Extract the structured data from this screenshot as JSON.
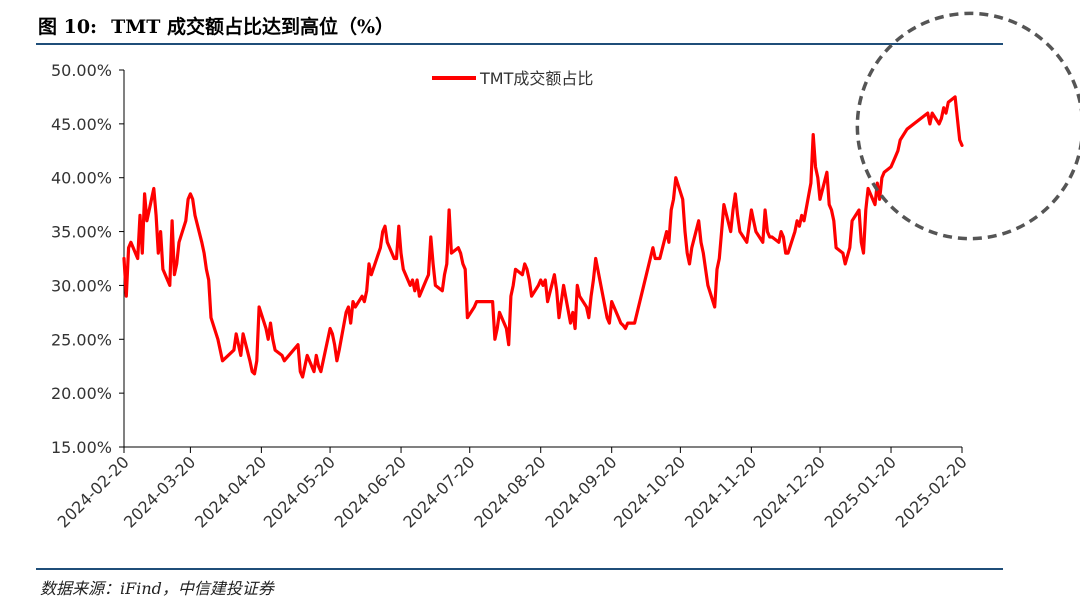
{
  "figure": {
    "number": "图 10:",
    "title": "TMT 成交额占比达到高位（%）",
    "source": "数据来源：iFind，中信建投证券"
  },
  "colors": {
    "series": "#ff0000",
    "axis": "#000000",
    "rule": "#1f4e79",
    "highlight_circle": "#555555"
  },
  "chart_data": {
    "type": "line",
    "title": "",
    "xlabel": "",
    "ylabel": "",
    "ylim": [
      15,
      50
    ],
    "y_ticks": [
      "15.00%",
      "20.00%",
      "25.00%",
      "30.00%",
      "35.00%",
      "40.00%",
      "45.00%",
      "50.00%"
    ],
    "y_tick_values": [
      15,
      20,
      25,
      30,
      35,
      40,
      45,
      50
    ],
    "x_ticks": [
      "2024-02-20",
      "2024-03-20",
      "2024-04-20",
      "2024-05-20",
      "2024-06-20",
      "2024-07-20",
      "2024-08-20",
      "2024-09-20",
      "2024-10-20",
      "2024-11-20",
      "2024-12-20",
      "2025-01-20",
      "2025-02-20"
    ],
    "xlim": [
      "2024-02-20",
      "2025-02-20"
    ],
    "grid": false,
    "legend": "top-center",
    "highlight": {
      "shape": "dashed-circle",
      "center": [
        "2025-02-20",
        44.8
      ],
      "radius_days": 24
    },
    "series": [
      {
        "name": "TMT成交额占比",
        "points": [
          [
            "2024-02-20",
            32.5
          ],
          [
            "2024-02-21",
            29.0
          ],
          [
            "2024-02-22",
            33.5
          ],
          [
            "2024-02-23",
            34.0
          ],
          [
            "2024-02-26",
            32.5
          ],
          [
            "2024-02-27",
            36.5
          ],
          [
            "2024-02-28",
            33.0
          ],
          [
            "2024-02-29",
            38.5
          ],
          [
            "2024-03-01",
            36.0
          ],
          [
            "2024-03-04",
            39.0
          ],
          [
            "2024-03-05",
            36.5
          ],
          [
            "2024-03-06",
            33.0
          ],
          [
            "2024-03-07",
            35.0
          ],
          [
            "2024-03-08",
            31.5
          ],
          [
            "2024-03-11",
            30.0
          ],
          [
            "2024-03-12",
            36.0
          ],
          [
            "2024-03-13",
            31.0
          ],
          [
            "2024-03-14",
            32.0
          ],
          [
            "2024-03-15",
            34.0
          ],
          [
            "2024-03-18",
            36.0
          ],
          [
            "2024-03-19",
            38.0
          ],
          [
            "2024-03-20",
            38.5
          ],
          [
            "2024-03-21",
            38.0
          ],
          [
            "2024-03-22",
            36.5
          ],
          [
            "2024-03-25",
            34.0
          ],
          [
            "2024-03-26",
            33.0
          ],
          [
            "2024-03-27",
            31.5
          ],
          [
            "2024-03-28",
            30.5
          ],
          [
            "2024-03-29",
            27.0
          ],
          [
            "2024-04-01",
            25.0
          ],
          [
            "2024-04-02",
            24.0
          ],
          [
            "2024-04-03",
            23.0
          ],
          [
            "2024-04-08",
            24.0
          ],
          [
            "2024-04-09",
            25.5
          ],
          [
            "2024-04-10",
            24.5
          ],
          [
            "2024-04-11",
            23.5
          ],
          [
            "2024-04-12",
            25.5
          ],
          [
            "2024-04-15",
            23.0
          ],
          [
            "2024-04-16",
            22.0
          ],
          [
            "2024-04-17",
            21.8
          ],
          [
            "2024-04-18",
            23.0
          ],
          [
            "2024-04-19",
            28.0
          ],
          [
            "2024-04-22",
            26.0
          ],
          [
            "2024-04-23",
            25.0
          ],
          [
            "2024-04-24",
            26.5
          ],
          [
            "2024-04-25",
            25.0
          ],
          [
            "2024-04-26",
            24.0
          ],
          [
            "2024-04-29",
            23.5
          ],
          [
            "2024-04-30",
            23.0
          ],
          [
            "2024-05-06",
            24.5
          ],
          [
            "2024-05-07",
            22.0
          ],
          [
            "2024-05-08",
            21.5
          ],
          [
            "2024-05-09",
            22.5
          ],
          [
            "2024-05-10",
            23.5
          ],
          [
            "2024-05-13",
            22.0
          ],
          [
            "2024-05-14",
            23.5
          ],
          [
            "2024-05-15",
            22.5
          ],
          [
            "2024-05-16",
            22.0
          ],
          [
            "2024-05-17",
            23.0
          ],
          [
            "2024-05-20",
            26.0
          ],
          [
            "2024-05-21",
            25.5
          ],
          [
            "2024-05-22",
            24.5
          ],
          [
            "2024-05-23",
            23.0
          ],
          [
            "2024-05-24",
            24.0
          ],
          [
            "2024-05-27",
            27.5
          ],
          [
            "2024-05-28",
            28.0
          ],
          [
            "2024-05-29",
            26.5
          ],
          [
            "2024-05-30",
            28.5
          ],
          [
            "2024-05-31",
            28.0
          ],
          [
            "2024-06-03",
            29.0
          ],
          [
            "2024-06-04",
            28.5
          ],
          [
            "2024-06-05",
            29.5
          ],
          [
            "2024-06-06",
            32.0
          ],
          [
            "2024-06-07",
            31.0
          ],
          [
            "2024-06-11",
            33.5
          ],
          [
            "2024-06-12",
            35.0
          ],
          [
            "2024-06-13",
            35.5
          ],
          [
            "2024-06-14",
            34.0
          ],
          [
            "2024-06-17",
            32.5
          ],
          [
            "2024-06-18",
            32.5
          ],
          [
            "2024-06-19",
            35.5
          ],
          [
            "2024-06-20",
            33.0
          ],
          [
            "2024-06-21",
            31.5
          ],
          [
            "2024-06-24",
            30.0
          ],
          [
            "2024-06-25",
            30.5
          ],
          [
            "2024-06-26",
            29.5
          ],
          [
            "2024-06-27",
            30.5
          ],
          [
            "2024-06-28",
            29.0
          ],
          [
            "2024-07-01",
            30.5
          ],
          [
            "2024-07-02",
            31.0
          ],
          [
            "2024-07-03",
            34.5
          ],
          [
            "2024-07-04",
            32.0
          ],
          [
            "2024-07-05",
            30.0
          ],
          [
            "2024-07-08",
            29.5
          ],
          [
            "2024-07-09",
            31.0
          ],
          [
            "2024-07-10",
            32.0
          ],
          [
            "2024-07-11",
            37.0
          ],
          [
            "2024-07-12",
            33.0
          ],
          [
            "2024-07-15",
            33.5
          ],
          [
            "2024-07-16",
            33.0
          ],
          [
            "2024-07-17",
            32.0
          ],
          [
            "2024-07-18",
            31.5
          ],
          [
            "2024-07-19",
            27.0
          ],
          [
            "2024-07-22",
            28.0
          ],
          [
            "2024-07-23",
            28.5
          ],
          [
            "2024-07-24",
            28.5
          ],
          [
            "2024-07-25",
            28.5
          ],
          [
            "2024-07-26",
            28.5
          ],
          [
            "2024-07-29",
            28.5
          ],
          [
            "2024-07-30",
            28.5
          ],
          [
            "2024-07-31",
            25.0
          ],
          [
            "2024-08-01",
            26.0
          ],
          [
            "2024-08-02",
            27.5
          ],
          [
            "2024-08-05",
            26.0
          ],
          [
            "2024-08-06",
            24.5
          ],
          [
            "2024-08-07",
            29.0
          ],
          [
            "2024-08-08",
            30.0
          ],
          [
            "2024-08-09",
            31.5
          ],
          [
            "2024-08-12",
            31.0
          ],
          [
            "2024-08-13",
            32.0
          ],
          [
            "2024-08-14",
            31.5
          ],
          [
            "2024-08-15",
            30.5
          ],
          [
            "2024-08-16",
            29.0
          ],
          [
            "2024-08-19",
            30.0
          ],
          [
            "2024-08-20",
            30.5
          ],
          [
            "2024-08-21",
            30.0
          ],
          [
            "2024-08-22",
            30.5
          ],
          [
            "2024-08-23",
            28.5
          ],
          [
            "2024-08-26",
            31.0
          ],
          [
            "2024-08-27",
            29.5
          ],
          [
            "2024-08-28",
            27.0
          ],
          [
            "2024-08-29",
            28.5
          ],
          [
            "2024-08-30",
            30.0
          ],
          [
            "2024-09-02",
            26.5
          ],
          [
            "2024-09-03",
            27.5
          ],
          [
            "2024-09-04",
            26.0
          ],
          [
            "2024-09-05",
            30.0
          ],
          [
            "2024-09-06",
            29.0
          ],
          [
            "2024-09-09",
            28.0
          ],
          [
            "2024-09-10",
            27.0
          ],
          [
            "2024-09-11",
            29.0
          ],
          [
            "2024-09-12",
            30.5
          ],
          [
            "2024-09-13",
            32.5
          ],
          [
            "2024-09-18",
            27.0
          ],
          [
            "2024-09-19",
            26.5
          ],
          [
            "2024-09-20",
            28.5
          ],
          [
            "2024-09-23",
            27.0
          ],
          [
            "2024-09-24",
            26.5
          ],
          [
            "2024-09-25",
            26.3
          ],
          [
            "2024-09-26",
            26.0
          ],
          [
            "2024-09-27",
            26.5
          ],
          [
            "2024-09-30",
            26.5
          ],
          [
            "2024-10-08",
            33.5
          ],
          [
            "2024-10-09",
            32.5
          ],
          [
            "2024-10-10",
            32.5
          ],
          [
            "2024-10-11",
            32.5
          ],
          [
            "2024-10-14",
            35.0
          ],
          [
            "2024-10-15",
            34.0
          ],
          [
            "2024-10-16",
            37.0
          ],
          [
            "2024-10-17",
            38.0
          ],
          [
            "2024-10-18",
            40.0
          ],
          [
            "2024-10-21",
            38.0
          ],
          [
            "2024-10-22",
            35.0
          ],
          [
            "2024-10-23",
            33.0
          ],
          [
            "2024-10-24",
            32.0
          ],
          [
            "2024-10-25",
            33.5
          ],
          [
            "2024-10-28",
            36.0
          ],
          [
            "2024-10-29",
            34.0
          ],
          [
            "2024-10-30",
            33.0
          ],
          [
            "2024-10-31",
            31.5
          ],
          [
            "2024-11-01",
            30.0
          ],
          [
            "2024-11-04",
            28.0
          ],
          [
            "2024-11-05",
            31.5
          ],
          [
            "2024-11-06",
            32.5
          ],
          [
            "2024-11-07",
            35.0
          ],
          [
            "2024-11-08",
            37.5
          ],
          [
            "2024-11-11",
            35.0
          ],
          [
            "2024-11-12",
            37.0
          ],
          [
            "2024-11-13",
            38.5
          ],
          [
            "2024-11-14",
            36.5
          ],
          [
            "2024-11-15",
            35.0
          ],
          [
            "2024-11-18",
            34.0
          ],
          [
            "2024-11-19",
            35.5
          ],
          [
            "2024-11-20",
            37.0
          ],
          [
            "2024-11-21",
            36.0
          ],
          [
            "2024-11-22",
            35.0
          ],
          [
            "2024-11-25",
            34.0
          ],
          [
            "2024-11-26",
            37.0
          ],
          [
            "2024-11-27",
            35.0
          ],
          [
            "2024-11-28",
            34.5
          ],
          [
            "2024-11-29",
            34.5
          ],
          [
            "2024-12-02",
            34.0
          ],
          [
            "2024-12-03",
            35.0
          ],
          [
            "2024-12-04",
            34.5
          ],
          [
            "2024-12-05",
            33.0
          ],
          [
            "2024-12-06",
            33.0
          ],
          [
            "2024-12-09",
            35.0
          ],
          [
            "2024-12-10",
            36.0
          ],
          [
            "2024-12-11",
            35.5
          ],
          [
            "2024-12-12",
            36.5
          ],
          [
            "2024-12-13",
            36.0
          ],
          [
            "2024-12-16",
            39.5
          ],
          [
            "2024-12-17",
            44.0
          ],
          [
            "2024-12-18",
            41.0
          ],
          [
            "2024-12-19",
            40.0
          ],
          [
            "2024-12-20",
            38.0
          ],
          [
            "2024-12-23",
            40.5
          ],
          [
            "2024-12-24",
            37.5
          ],
          [
            "2024-12-25",
            37.0
          ],
          [
            "2024-12-26",
            36.0
          ],
          [
            "2024-12-27",
            33.5
          ],
          [
            "2024-12-30",
            33.0
          ],
          [
            "2024-12-31",
            32.0
          ],
          [
            "2025-01-02",
            33.5
          ],
          [
            "2025-01-03",
            36.0
          ],
          [
            "2025-01-06",
            37.0
          ],
          [
            "2025-01-07",
            34.0
          ],
          [
            "2025-01-08",
            33.0
          ],
          [
            "2025-01-09",
            37.0
          ],
          [
            "2025-01-10",
            39.0
          ],
          [
            "2025-01-13",
            37.5
          ],
          [
            "2025-01-14",
            39.5
          ],
          [
            "2025-01-15",
            38.0
          ],
          [
            "2025-01-16",
            40.0
          ],
          [
            "2025-01-17",
            40.5
          ],
          [
            "2025-01-20",
            41.0
          ],
          [
            "2025-01-21",
            41.5
          ],
          [
            "2025-01-22",
            42.0
          ],
          [
            "2025-01-23",
            42.5
          ],
          [
            "2025-01-24",
            43.5
          ],
          [
            "2025-01-27",
            44.5
          ],
          [
            "2025-02-05",
            46.0
          ],
          [
            "2025-02-06",
            45.0
          ],
          [
            "2025-02-07",
            46.0
          ],
          [
            "2025-02-10",
            45.0
          ],
          [
            "2025-02-11",
            45.5
          ],
          [
            "2025-02-12",
            46.5
          ],
          [
            "2025-02-13",
            46.0
          ],
          [
            "2025-02-14",
            47.0
          ],
          [
            "2025-02-17",
            47.5
          ],
          [
            "2025-02-18",
            45.5
          ],
          [
            "2025-02-19",
            43.5
          ],
          [
            "2025-02-20",
            43.0
          ]
        ]
      }
    ]
  }
}
